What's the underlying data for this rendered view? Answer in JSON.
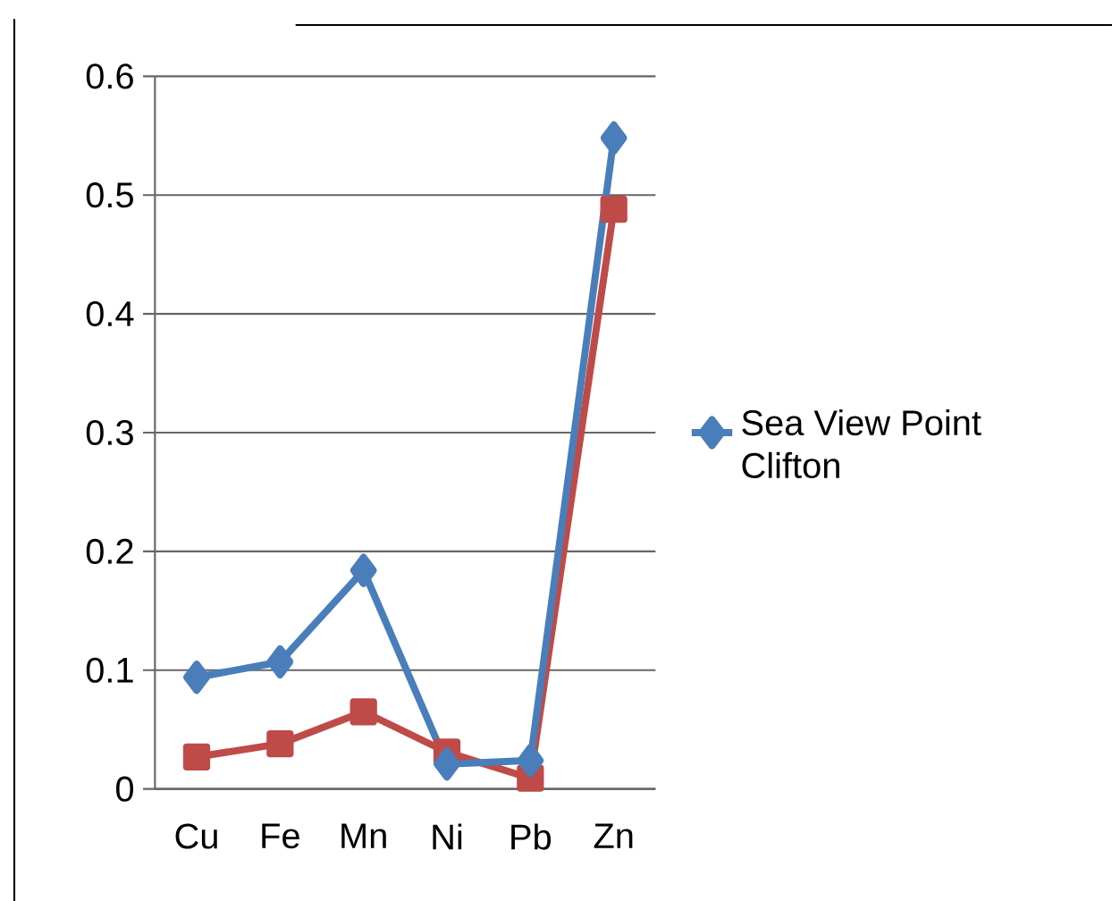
{
  "chart_data": {
    "type": "line",
    "categories": [
      "Cu",
      "Fe",
      "Mn",
      "Ni",
      "Pb",
      "Zn"
    ],
    "series": [
      {
        "name": "Sea View Point Clifton",
        "color": "#4a7ebb",
        "marker": "diamond",
        "values": [
          0.094,
          0.107,
          0.184,
          0.021,
          0.024,
          0.548
        ]
      },
      {
        "color": "#be4b48",
        "marker": "square",
        "values": [
          0.027,
          0.038,
          0.065,
          0.031,
          0.009,
          0.488
        ]
      }
    ],
    "ylim": [
      0,
      0.6
    ],
    "yticks": [
      0,
      0.1,
      0.2,
      0.3,
      0.4,
      0.5,
      0.6
    ],
    "grid": "y",
    "legend": "right",
    "line_style": "solid"
  }
}
